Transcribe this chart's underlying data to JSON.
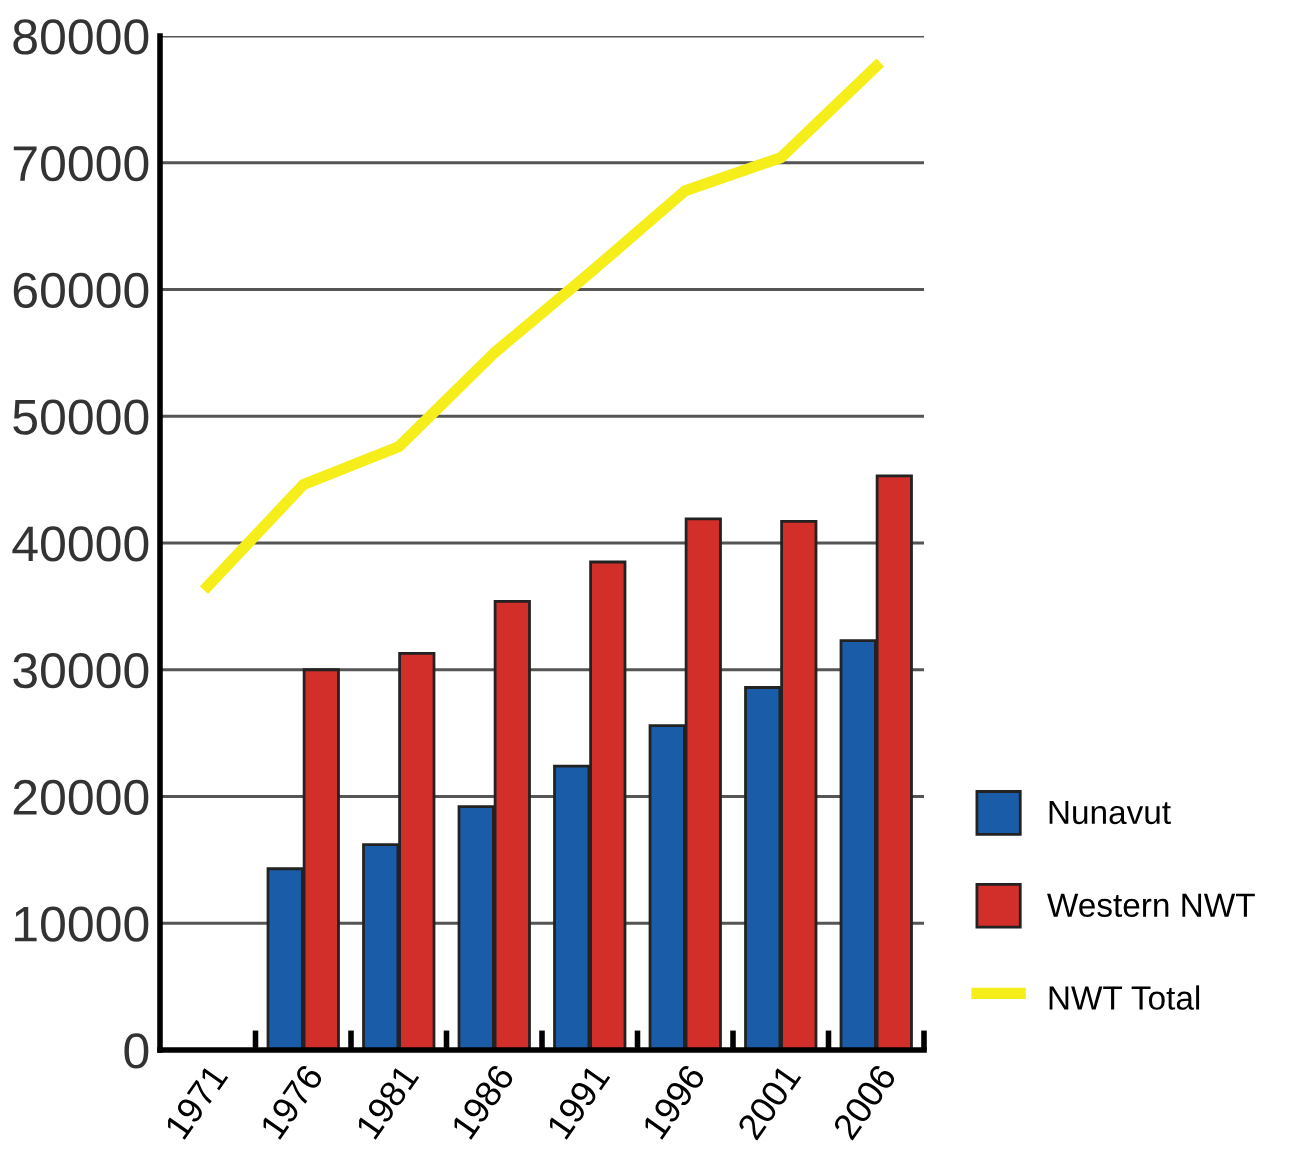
{
  "chart_data": {
    "type": "bar",
    "categories": [
      "1971",
      "1976",
      "1981",
      "1986",
      "1991",
      "1996",
      "2001",
      "2006"
    ],
    "series": [
      {
        "name": "Nunavut",
        "color": "#1a5ca8",
        "values": [
          null,
          14300,
          16200,
          19200,
          22400,
          25600,
          28600,
          32300
        ]
      },
      {
        "name": "Western NWT",
        "color": "#d32f2a",
        "values": [
          null,
          30000,
          31300,
          35400,
          38500,
          41900,
          41700,
          45300
        ]
      },
      {
        "name": "NWT Total",
        "type": "line",
        "color": "#f5ee1a",
        "values": [
          36600,
          44600,
          47600,
          55000,
          61300,
          67800,
          70400,
          77600
        ]
      }
    ],
    "ylim": [
      0,
      80000
    ],
    "yticks": [
      0,
      10000,
      20000,
      30000,
      40000,
      50000,
      60000,
      70000,
      80000
    ],
    "grid": "y",
    "legend": "bottom right"
  }
}
